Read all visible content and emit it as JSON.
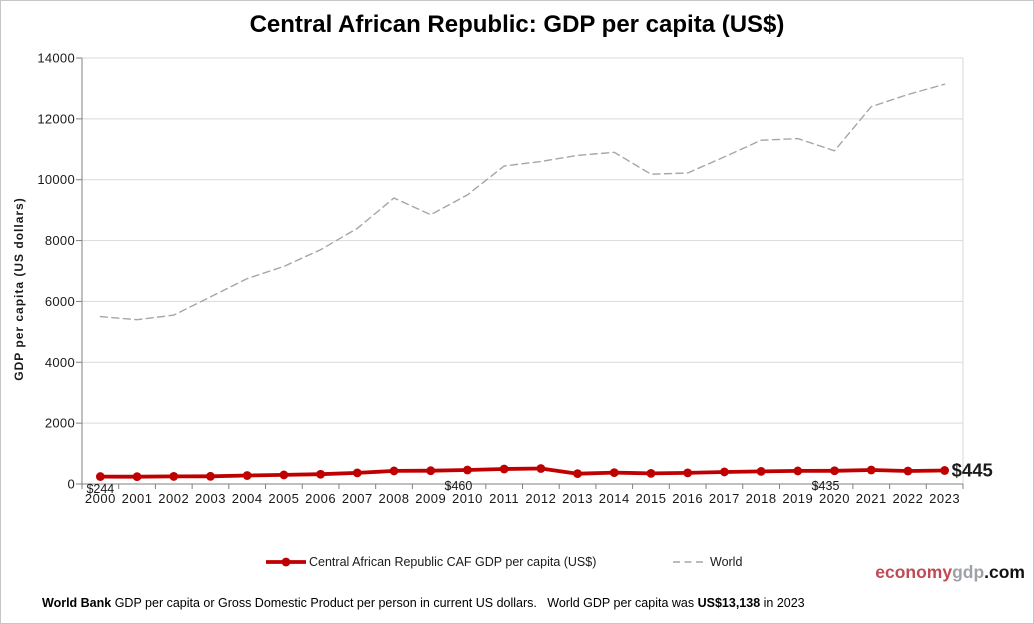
{
  "title": "Central African Republic: GDP per capita (US$)",
  "legend": {
    "caf_label": "Central African Republic CAF GDP per capita (US$)",
    "world_label": "World"
  },
  "brand": {
    "part1": "economy",
    "part2": "gdp",
    "part3": ".com"
  },
  "footer": {
    "segments": [
      {
        "text": "World Bank",
        "bold": true
      },
      {
        "text": " GDP per capita or Gross Domestic Product per person in current US dollars.   World GDP per capita was ",
        "bold": false
      },
      {
        "text": "US$13,138",
        "bold": true
      },
      {
        "text": " in 2023",
        "bold": false
      }
    ]
  },
  "colors": {
    "caf_red": "#C00000",
    "world_gray": "#A6A6A6",
    "gridline": "#D9D9D9",
    "axis": "#808080",
    "tick_text": "#1A1A1A",
    "brand_red": "#C04A54",
    "brand_gray": "#9EA2A8"
  },
  "chart_data": {
    "type": "line",
    "title": "Central African Republic: GDP per capita (US$)",
    "xlabel": "",
    "ylabel": "GDP per capita (US dollars)",
    "ylim": [
      0,
      14000
    ],
    "ytick_step": 2000,
    "grid": true,
    "legend_position": "bottom",
    "categories": [
      2000,
      2001,
      2002,
      2003,
      2004,
      2005,
      2006,
      2007,
      2008,
      2009,
      2010,
      2011,
      2012,
      2013,
      2014,
      2015,
      2016,
      2017,
      2018,
      2019,
      2020,
      2021,
      2022,
      2023
    ],
    "series": [
      {
        "name": "Central African Republic CAF GDP per capita (US$)",
        "color": "#C00000",
        "style": "solid",
        "markers": true,
        "values": [
          244,
          240,
          249,
          252,
          278,
          298,
          321,
          365,
          429,
          437,
          460,
          492,
          509,
          340,
          375,
          348,
          365,
          396,
          414,
          429,
          435,
          461,
          427,
          445
        ]
      },
      {
        "name": "World",
        "color": "#A6A6A6",
        "style": "dashed",
        "markers": false,
        "values": [
          5500,
          5400,
          5550,
          6150,
          6750,
          7150,
          7700,
          8400,
          9400,
          8850,
          9500,
          10450,
          10600,
          10800,
          10900,
          10180,
          10220,
          10750,
          11300,
          11350,
          10950,
          12400,
          12800,
          13138
        ]
      }
    ],
    "annotations": [
      {
        "year": 2000,
        "label": "$244",
        "emphasis": false
      },
      {
        "year": 2010,
        "label": "$460",
        "emphasis": false
      },
      {
        "year": 2020,
        "label": "$435",
        "emphasis": false
      },
      {
        "year": 2023,
        "label": "$445",
        "emphasis": true
      }
    ]
  }
}
